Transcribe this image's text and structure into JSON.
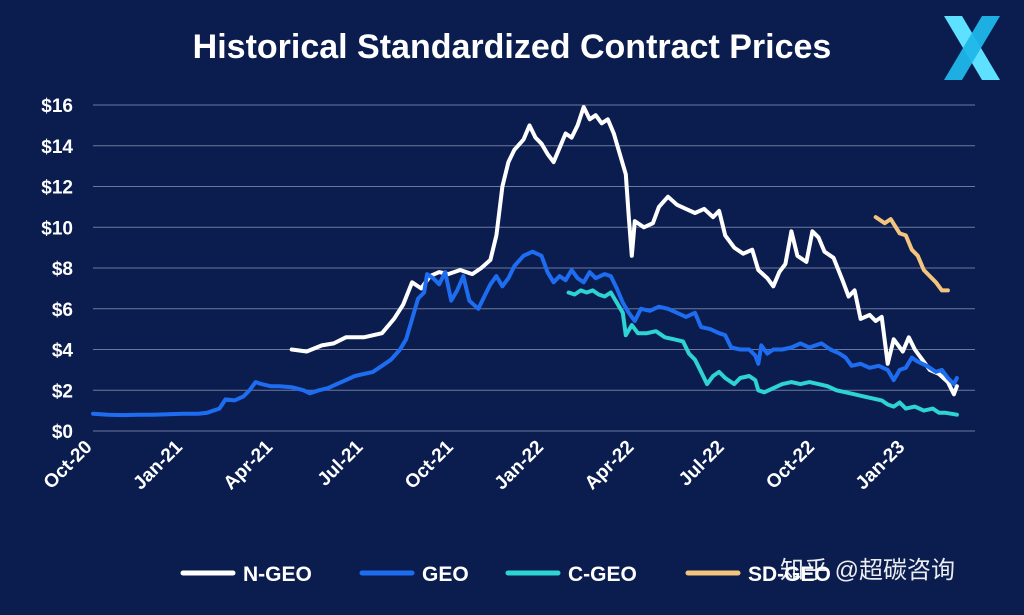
{
  "page": {
    "background": "#0b1d4f"
  },
  "watermark": "知乎 @超碳咨询",
  "logo": {
    "name": "x-logo-icon",
    "color_light": "#5ee0ff",
    "color_dark": "#1fb6ea"
  },
  "chart_data": {
    "type": "line",
    "title": "Historical Standardized Contract Prices",
    "xlabel": "",
    "ylabel": "",
    "ylim": [
      0,
      16
    ],
    "xlim": [
      0,
      29.3
    ],
    "x_unit": "months since Oct-20",
    "yticks": [
      {
        "value": 0,
        "label": "$0"
      },
      {
        "value": 2,
        "label": "$2"
      },
      {
        "value": 4,
        "label": "$4"
      },
      {
        "value": 6,
        "label": "$6"
      },
      {
        "value": 8,
        "label": "$8"
      },
      {
        "value": 10,
        "label": "$10"
      },
      {
        "value": 12,
        "label": "$12"
      },
      {
        "value": 14,
        "label": "$14"
      },
      {
        "value": 16,
        "label": "$16"
      }
    ],
    "xticks": [
      {
        "value": 0,
        "label": "Oct-20"
      },
      {
        "value": 3,
        "label": "Jan-21"
      },
      {
        "value": 6,
        "label": "Apr-21"
      },
      {
        "value": 9,
        "label": "Jul-21"
      },
      {
        "value": 12,
        "label": "Oct-21"
      },
      {
        "value": 15,
        "label": "Jan-22"
      },
      {
        "value": 18,
        "label": "Apr-22"
      },
      {
        "value": 21,
        "label": "Jul-22"
      },
      {
        "value": 24,
        "label": "Oct-22"
      },
      {
        "value": 27,
        "label": "Jan-23"
      }
    ],
    "grid": true,
    "legend_position": "bottom",
    "series": [
      {
        "name": "N-GEO",
        "color": "#ffffff",
        "points": [
          [
            6.6,
            4.0
          ],
          [
            7.1,
            3.9
          ],
          [
            7.6,
            4.2
          ],
          [
            8.0,
            4.3
          ],
          [
            8.4,
            4.6
          ],
          [
            9.0,
            4.6
          ],
          [
            9.6,
            4.8
          ],
          [
            10.0,
            5.5
          ],
          [
            10.3,
            6.2
          ],
          [
            10.6,
            7.3
          ],
          [
            10.9,
            7.0
          ],
          [
            11.2,
            7.6
          ],
          [
            11.5,
            7.8
          ],
          [
            11.8,
            7.7
          ],
          [
            12.2,
            7.9
          ],
          [
            12.6,
            7.7
          ],
          [
            12.9,
            8.0
          ],
          [
            13.2,
            8.4
          ],
          [
            13.4,
            9.6
          ],
          [
            13.6,
            12.0
          ],
          [
            13.8,
            13.2
          ],
          [
            14.0,
            13.8
          ],
          [
            14.3,
            14.3
          ],
          [
            14.5,
            15.0
          ],
          [
            14.7,
            14.4
          ],
          [
            14.9,
            14.1
          ],
          [
            15.1,
            13.6
          ],
          [
            15.3,
            13.2
          ],
          [
            15.5,
            13.9
          ],
          [
            15.7,
            14.6
          ],
          [
            15.9,
            14.4
          ],
          [
            16.1,
            15.0
          ],
          [
            16.3,
            15.9
          ],
          [
            16.5,
            15.3
          ],
          [
            16.7,
            15.5
          ],
          [
            16.9,
            15.1
          ],
          [
            17.1,
            15.3
          ],
          [
            17.3,
            14.6
          ],
          [
            17.5,
            13.6
          ],
          [
            17.7,
            12.6
          ],
          [
            17.8,
            10.5
          ],
          [
            17.9,
            8.6
          ],
          [
            18.0,
            10.3
          ],
          [
            18.3,
            10.0
          ],
          [
            18.6,
            10.2
          ],
          [
            18.8,
            11.0
          ],
          [
            19.1,
            11.5
          ],
          [
            19.4,
            11.1
          ],
          [
            19.7,
            10.9
          ],
          [
            20.0,
            10.7
          ],
          [
            20.3,
            10.9
          ],
          [
            20.6,
            10.5
          ],
          [
            20.8,
            10.8
          ],
          [
            21.0,
            9.6
          ],
          [
            21.3,
            9.0
          ],
          [
            21.6,
            8.7
          ],
          [
            21.9,
            8.9
          ],
          [
            22.1,
            7.9
          ],
          [
            22.4,
            7.5
          ],
          [
            22.6,
            7.1
          ],
          [
            22.8,
            7.8
          ],
          [
            23.0,
            8.2
          ],
          [
            23.2,
            9.8
          ],
          [
            23.4,
            8.6
          ],
          [
            23.7,
            8.3
          ],
          [
            23.9,
            9.8
          ],
          [
            24.1,
            9.5
          ],
          [
            24.3,
            8.8
          ],
          [
            24.6,
            8.5
          ],
          [
            24.9,
            7.4
          ],
          [
            25.1,
            6.6
          ],
          [
            25.3,
            6.9
          ],
          [
            25.5,
            5.5
          ],
          [
            25.8,
            5.7
          ],
          [
            26.0,
            5.4
          ],
          [
            26.2,
            5.6
          ],
          [
            26.4,
            3.3
          ],
          [
            26.6,
            4.5
          ],
          [
            26.9,
            3.9
          ],
          [
            27.1,
            4.6
          ],
          [
            27.3,
            4.0
          ],
          [
            27.6,
            3.4
          ],
          [
            27.8,
            3.0
          ],
          [
            28.1,
            2.8
          ],
          [
            28.4,
            2.4
          ],
          [
            28.6,
            1.8
          ],
          [
            28.7,
            2.2
          ]
        ]
      },
      {
        "name": "GEO",
        "color": "#1e6df0",
        "points": [
          [
            0.0,
            0.85
          ],
          [
            0.5,
            0.8
          ],
          [
            1.0,
            0.78
          ],
          [
            1.5,
            0.8
          ],
          [
            2.0,
            0.8
          ],
          [
            2.5,
            0.82
          ],
          [
            3.0,
            0.85
          ],
          [
            3.5,
            0.85
          ],
          [
            3.8,
            0.9
          ],
          [
            4.0,
            1.0
          ],
          [
            4.2,
            1.1
          ],
          [
            4.4,
            1.55
          ],
          [
            4.7,
            1.5
          ],
          [
            5.0,
            1.7
          ],
          [
            5.2,
            2.0
          ],
          [
            5.4,
            2.4
          ],
          [
            5.6,
            2.3
          ],
          [
            5.9,
            2.2
          ],
          [
            6.2,
            2.2
          ],
          [
            6.6,
            2.15
          ],
          [
            7.0,
            2.0
          ],
          [
            7.2,
            1.85
          ],
          [
            7.5,
            2.0
          ],
          [
            7.8,
            2.1
          ],
          [
            8.1,
            2.3
          ],
          [
            8.4,
            2.5
          ],
          [
            8.7,
            2.7
          ],
          [
            9.0,
            2.8
          ],
          [
            9.3,
            2.9
          ],
          [
            9.6,
            3.2
          ],
          [
            9.9,
            3.5
          ],
          [
            10.2,
            4.0
          ],
          [
            10.4,
            4.5
          ],
          [
            10.6,
            5.5
          ],
          [
            10.8,
            6.5
          ],
          [
            11.0,
            6.8
          ],
          [
            11.1,
            7.7
          ],
          [
            11.3,
            7.5
          ],
          [
            11.5,
            7.2
          ],
          [
            11.7,
            7.8
          ],
          [
            11.9,
            6.4
          ],
          [
            12.1,
            6.9
          ],
          [
            12.3,
            7.6
          ],
          [
            12.5,
            6.4
          ],
          [
            12.8,
            6.0
          ],
          [
            13.0,
            6.6
          ],
          [
            13.2,
            7.2
          ],
          [
            13.4,
            7.6
          ],
          [
            13.6,
            7.1
          ],
          [
            13.8,
            7.5
          ],
          [
            14.0,
            8.1
          ],
          [
            14.3,
            8.6
          ],
          [
            14.6,
            8.8
          ],
          [
            14.9,
            8.6
          ],
          [
            15.1,
            7.8
          ],
          [
            15.3,
            7.3
          ],
          [
            15.5,
            7.6
          ],
          [
            15.7,
            7.4
          ],
          [
            15.9,
            7.9
          ],
          [
            16.1,
            7.5
          ],
          [
            16.3,
            7.3
          ],
          [
            16.5,
            7.8
          ],
          [
            16.7,
            7.5
          ],
          [
            17.0,
            7.7
          ],
          [
            17.2,
            7.6
          ],
          [
            17.4,
            7.0
          ],
          [
            17.6,
            6.3
          ],
          [
            17.8,
            5.8
          ],
          [
            18.0,
            5.4
          ],
          [
            18.2,
            6.0
          ],
          [
            18.5,
            5.9
          ],
          [
            18.8,
            6.1
          ],
          [
            19.1,
            6.0
          ],
          [
            19.4,
            5.8
          ],
          [
            19.7,
            5.6
          ],
          [
            20.0,
            5.8
          ],
          [
            20.2,
            5.1
          ],
          [
            20.5,
            5.0
          ],
          [
            20.8,
            4.8
          ],
          [
            21.0,
            4.7
          ],
          [
            21.2,
            4.1
          ],
          [
            21.5,
            4.0
          ],
          [
            21.8,
            4.0
          ],
          [
            22.0,
            3.7
          ],
          [
            22.1,
            3.3
          ],
          [
            22.2,
            4.2
          ],
          [
            22.4,
            3.8
          ],
          [
            22.6,
            4.0
          ],
          [
            22.9,
            4.0
          ],
          [
            23.2,
            4.1
          ],
          [
            23.5,
            4.3
          ],
          [
            23.8,
            4.1
          ],
          [
            24.0,
            4.2
          ],
          [
            24.2,
            4.3
          ],
          [
            24.5,
            4.0
          ],
          [
            24.8,
            3.8
          ],
          [
            25.0,
            3.6
          ],
          [
            25.2,
            3.2
          ],
          [
            25.5,
            3.3
          ],
          [
            25.8,
            3.1
          ],
          [
            26.1,
            3.2
          ],
          [
            26.4,
            3.0
          ],
          [
            26.6,
            2.5
          ],
          [
            26.8,
            3.0
          ],
          [
            27.0,
            3.1
          ],
          [
            27.2,
            3.6
          ],
          [
            27.4,
            3.4
          ],
          [
            27.7,
            3.2
          ],
          [
            28.0,
            2.9
          ],
          [
            28.2,
            3.0
          ],
          [
            28.4,
            2.6
          ],
          [
            28.6,
            2.3
          ],
          [
            28.7,
            2.6
          ]
        ]
      },
      {
        "name": "C-GEO",
        "color": "#2ed3d3",
        "points": [
          [
            15.8,
            6.8
          ],
          [
            16.0,
            6.7
          ],
          [
            16.2,
            6.9
          ],
          [
            16.4,
            6.8
          ],
          [
            16.6,
            6.9
          ],
          [
            16.8,
            6.7
          ],
          [
            17.0,
            6.6
          ],
          [
            17.2,
            6.8
          ],
          [
            17.4,
            6.3
          ],
          [
            17.6,
            5.8
          ],
          [
            17.7,
            4.7
          ],
          [
            17.9,
            5.2
          ],
          [
            18.1,
            4.8
          ],
          [
            18.4,
            4.8
          ],
          [
            18.7,
            4.9
          ],
          [
            19.0,
            4.6
          ],
          [
            19.3,
            4.5
          ],
          [
            19.6,
            4.4
          ],
          [
            19.8,
            3.8
          ],
          [
            20.0,
            3.5
          ],
          [
            20.2,
            2.9
          ],
          [
            20.4,
            2.3
          ],
          [
            20.6,
            2.7
          ],
          [
            20.8,
            2.9
          ],
          [
            21.0,
            2.6
          ],
          [
            21.3,
            2.3
          ],
          [
            21.5,
            2.6
          ],
          [
            21.8,
            2.7
          ],
          [
            22.0,
            2.5
          ],
          [
            22.1,
            2.0
          ],
          [
            22.3,
            1.9
          ],
          [
            22.6,
            2.1
          ],
          [
            22.9,
            2.3
          ],
          [
            23.2,
            2.4
          ],
          [
            23.5,
            2.3
          ],
          [
            23.8,
            2.4
          ],
          [
            24.1,
            2.3
          ],
          [
            24.4,
            2.2
          ],
          [
            24.7,
            2.0
          ],
          [
            25.0,
            1.9
          ],
          [
            25.3,
            1.8
          ],
          [
            25.6,
            1.7
          ],
          [
            25.9,
            1.6
          ],
          [
            26.2,
            1.5
          ],
          [
            26.4,
            1.3
          ],
          [
            26.6,
            1.2
          ],
          [
            26.8,
            1.4
          ],
          [
            27.0,
            1.1
          ],
          [
            27.3,
            1.2
          ],
          [
            27.6,
            1.0
          ],
          [
            27.9,
            1.1
          ],
          [
            28.1,
            0.9
          ],
          [
            28.3,
            0.9
          ],
          [
            28.5,
            0.85
          ],
          [
            28.7,
            0.8
          ]
        ]
      },
      {
        "name": "SD-GEO",
        "color": "#f3c57d",
        "points": [
          [
            26.0,
            10.5
          ],
          [
            26.3,
            10.2
          ],
          [
            26.5,
            10.4
          ],
          [
            26.8,
            9.7
          ],
          [
            27.0,
            9.6
          ],
          [
            27.2,
            8.9
          ],
          [
            27.4,
            8.6
          ],
          [
            27.6,
            7.9
          ],
          [
            27.8,
            7.6
          ],
          [
            28.0,
            7.3
          ],
          [
            28.2,
            6.9
          ],
          [
            28.4,
            6.9
          ]
        ]
      }
    ]
  }
}
